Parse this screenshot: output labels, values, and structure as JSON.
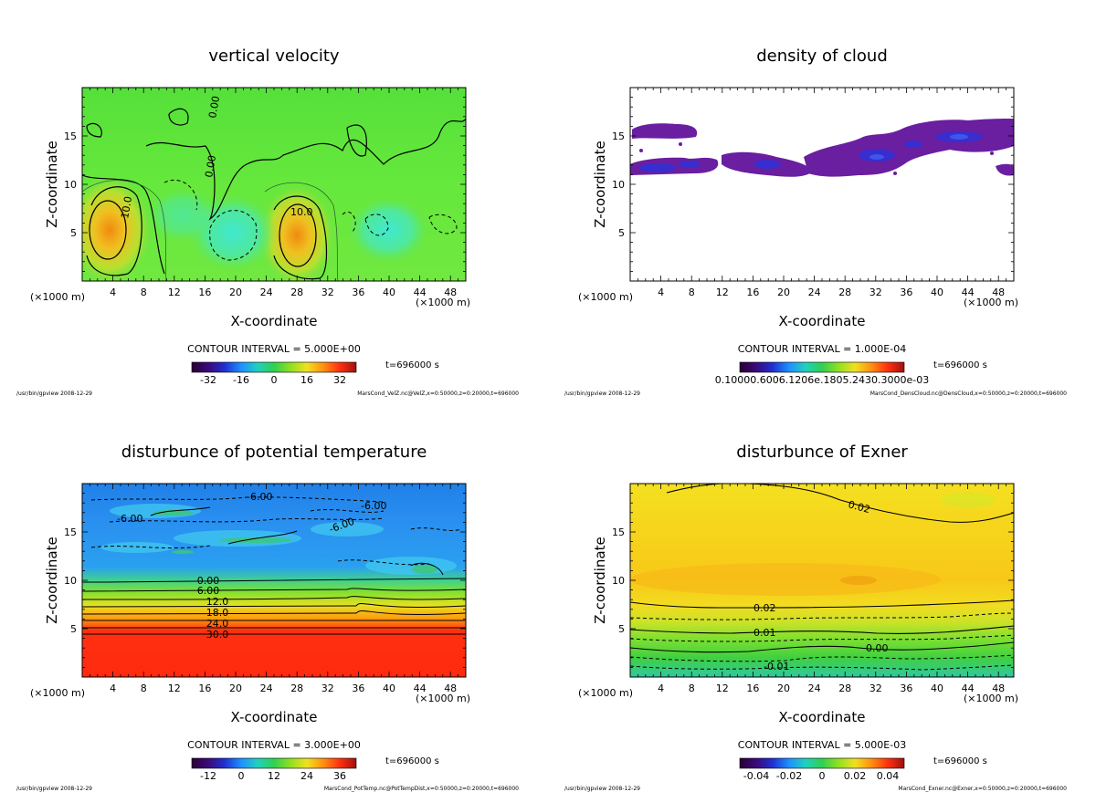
{
  "panels": [
    {
      "title": "vertical velocity",
      "xlabel": "X-coordinate",
      "ylabel": "Z-coordinate",
      "x_unit": "(×1000 m)",
      "x_ticks": [
        "4",
        "8",
        "12",
        "16",
        "20",
        "24",
        "28",
        "32",
        "36",
        "40",
        "44",
        "48"
      ],
      "y_ticks": [
        "5",
        "10",
        "15"
      ],
      "contour_interval": "CONTOUR INTERVAL = 5.000E+00",
      "time": "t=696000 s",
      "colorbar_ticks": [
        "-32",
        "-16",
        "0",
        "16",
        "32"
      ],
      "footer_left": "/usr/bin/gpview  2008-12-29",
      "footer_right": "MarsCond_VelZ.nc@VelZ,x=0:50000,z=0:20000,t=696000",
      "contour_labels": [
        "10.0",
        "10.0",
        "0.00",
        "0.00"
      ]
    },
    {
      "title": "density of cloud",
      "xlabel": "X-coordinate",
      "ylabel": "Z-coordinate",
      "x_unit": "(×1000 m)",
      "x_ticks": [
        "4",
        "8",
        "12",
        "16",
        "20",
        "24",
        "28",
        "32",
        "36",
        "40",
        "44",
        "48"
      ],
      "y_ticks": [
        "5",
        "10",
        "15"
      ],
      "contour_interval": "CONTOUR INTERVAL = 1.000E-04",
      "time": "t=696000 s",
      "colorbar_ticks": [
        "0.10000.6006.1206e.1805.2430.3000e-03"
      ],
      "footer_left": "/usr/bin/gpview  2008-12-29",
      "footer_right": "MarsCond_DensCloud.nc@DensCloud,x=0:50000,z=0:20000,t=696000",
      "contour_labels": []
    },
    {
      "title": "disturbunce of potential temperature",
      "xlabel": "X-coordinate",
      "ylabel": "Z-coordinate",
      "x_unit": "(×1000 m)",
      "x_ticks": [
        "4",
        "8",
        "12",
        "16",
        "20",
        "24",
        "28",
        "32",
        "36",
        "40",
        "44",
        "48"
      ],
      "y_ticks": [
        "5",
        "10",
        "15"
      ],
      "contour_interval": "CONTOUR INTERVAL = 3.000E+00",
      "time": "t=696000 s",
      "colorbar_ticks": [
        "-12",
        "0",
        "12",
        "24",
        "36"
      ],
      "footer_left": "/usr/bin/gpview  2008-12-29",
      "footer_right": "MarsCond_PotTemp.nc@PotTempDist,x=0:50000,z=0:20000,t=696000",
      "contour_labels": [
        "-6.00",
        "-6.00",
        "-6.00",
        "-6.00",
        "0.00",
        "6.00",
        "12.0",
        "18.0",
        "24.0",
        "30.0"
      ]
    },
    {
      "title": "disturbunce of Exner",
      "xlabel": "X-coordinate",
      "ylabel": "Z-coordinate",
      "x_unit": "(×1000 m)",
      "x_ticks": [
        "4",
        "8",
        "12",
        "16",
        "20",
        "24",
        "28",
        "32",
        "36",
        "40",
        "44",
        "48"
      ],
      "y_ticks": [
        "5",
        "10",
        "15"
      ],
      "contour_interval": "CONTOUR INTERVAL = 5.000E-03",
      "time": "t=696000 s",
      "colorbar_ticks": [
        "-0.04",
        "-0.02",
        "0",
        "0.02",
        "0.04"
      ],
      "footer_left": "/usr/bin/gpview  2008-12-29",
      "footer_right": "MarsCond_Exner.nc@Exner,x=0:50000,z=0:20000,t=696000",
      "contour_labels": [
        "0.02",
        "0.02",
        "0.01",
        "0.00",
        "-0.01"
      ]
    }
  ],
  "chart_data": [
    {
      "type": "heatmap",
      "title": "vertical velocity",
      "xlabel": "X-coordinate",
      "ylabel": "Z-coordinate",
      "xlim": [
        0,
        50
      ],
      "ylim": [
        0,
        20
      ],
      "contour_interval": 5.0,
      "colorbar_range": [
        -40,
        40
      ],
      "time_s": 696000
    },
    {
      "type": "heatmap",
      "title": "density of cloud",
      "xlabel": "X-coordinate",
      "ylabel": "Z-coordinate",
      "xlim": [
        0,
        50
      ],
      "ylim": [
        0,
        20
      ],
      "contour_interval": 0.0001,
      "time_s": 696000
    },
    {
      "type": "heatmap",
      "title": "disturbunce of potential temperature",
      "xlabel": "X-coordinate",
      "ylabel": "Z-coordinate",
      "xlim": [
        0,
        50
      ],
      "ylim": [
        0,
        20
      ],
      "contour_interval": 3.0,
      "colorbar_range": [
        -18,
        42
      ],
      "time_s": 696000
    },
    {
      "type": "heatmap",
      "title": "disturbunce of Exner",
      "xlabel": "X-coordinate",
      "ylabel": "Z-coordinate",
      "xlim": [
        0,
        50
      ],
      "ylim": [
        0,
        20
      ],
      "contour_interval": 0.005,
      "colorbar_range": [
        -0.05,
        0.05
      ],
      "time_s": 696000
    }
  ]
}
